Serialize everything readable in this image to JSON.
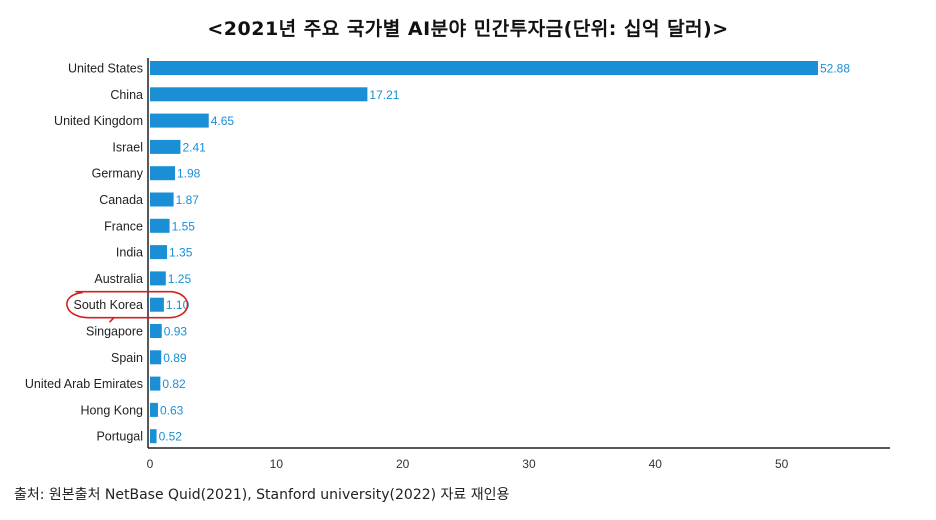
{
  "title": "<2021년 주요 국가별 AI분야 민간투자금(단위: 십억 달러)>",
  "source": "출처: 원본출처 NetBase Quid(2021), Stanford university(2022) 자료 재인용",
  "chart_data": {
    "type": "bar",
    "orientation": "horizontal",
    "title": "<2021년 주요 국가별 AI분야 민간투자금(단위: 십억 달러)>",
    "categories": [
      "United States",
      "China",
      "United Kingdom",
      "Israel",
      "Germany",
      "Canada",
      "France",
      "India",
      "Australia",
      "South Korea",
      "Singapore",
      "Spain",
      "United Arab Emirates",
      "Hong Kong",
      "Portugal"
    ],
    "values": [
      52.88,
      17.21,
      4.65,
      2.41,
      1.98,
      1.87,
      1.55,
      1.35,
      1.25,
      1.1,
      0.93,
      0.89,
      0.82,
      0.63,
      0.52
    ],
    "value_labels": [
      "52.88",
      "17.21",
      "4.65",
      "2.41",
      "1.98",
      "1.87",
      "1.55",
      "1.35",
      "1.25",
      "1.10",
      "0.93",
      "0.89",
      "0.82",
      "0.63",
      "0.52"
    ],
    "xlim": [
      0,
      58
    ],
    "xticks": [
      0,
      10,
      20,
      30,
      40,
      50
    ],
    "grid": false,
    "bar_color": "#1a8fd6",
    "label_color": "#1a8fd6",
    "highlight": {
      "category": "South Korea",
      "marker": "red hand-drawn ellipse",
      "color": "#d42020"
    }
  }
}
